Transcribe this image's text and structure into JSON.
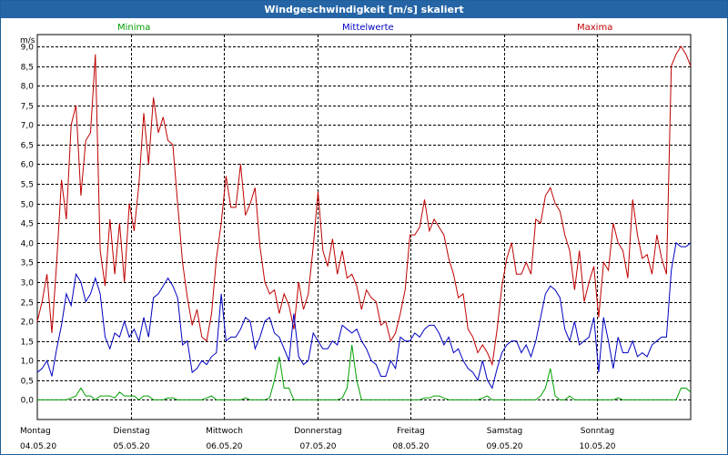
{
  "window": {
    "title": "Windgeschwindigkeit [m/s] skaliert"
  },
  "legend": {
    "min_label": "Minima",
    "mean_label": "Mittelwerte",
    "max_label": "Maxima"
  },
  "colors": {
    "title_bar": "#2565a5",
    "min": "#00a000",
    "mean": "#0000c0",
    "max": "#c00000"
  },
  "chart_data": {
    "type": "line",
    "ylabel": "m/s",
    "ylim": [
      -0.5,
      9.3
    ],
    "yticks": [
      "0,0",
      "0,5",
      "1,0",
      "1,5",
      "2,0",
      "2,5",
      "3,0",
      "3,5",
      "4,0",
      "4,5",
      "5,0",
      "5,5",
      "6,0",
      "6,5",
      "7,0",
      "7,5",
      "8,0",
      "8,5",
      "9,0"
    ],
    "xlim": [
      0,
      7
    ],
    "xticks": [
      {
        "day": "Montag",
        "date": "04.05.20"
      },
      {
        "day": "Dienstag",
        "date": "05.05.20"
      },
      {
        "day": "Mittwoch",
        "date": "06.05.20"
      },
      {
        "day": "Donnerstag",
        "date": "07.05.20"
      },
      {
        "day": "Freitag",
        "date": "08.05.20"
      },
      {
        "day": "Samstag",
        "date": "09.05.20"
      },
      {
        "day": "Sonntag",
        "date": "10.05.20"
      }
    ],
    "grid": true,
    "series": [
      {
        "name": "Maxima",
        "color": "#c00000",
        "values": [
          2.0,
          2.5,
          3.2,
          1.7,
          3.5,
          5.6,
          4.6,
          7.0,
          7.5,
          5.2,
          6.6,
          6.8,
          8.8,
          3.8,
          2.9,
          4.6,
          3.2,
          4.5,
          3.0,
          5.0,
          4.3,
          5.5,
          7.3,
          6.0,
          7.7,
          6.8,
          7.2,
          6.6,
          6.5,
          5.0,
          3.5,
          2.6,
          1.9,
          2.3,
          1.6,
          1.5,
          2.2,
          3.6,
          4.5,
          5.7,
          4.9,
          4.9,
          6.0,
          4.7,
          5.0,
          5.4,
          3.9,
          3.0,
          2.7,
          2.8,
          2.2,
          2.7,
          2.4,
          1.8,
          3.0,
          2.3,
          2.7,
          3.9,
          5.3,
          3.8,
          3.4,
          4.1,
          3.2,
          3.8,
          3.1,
          3.2,
          2.9,
          2.3,
          2.8,
          2.6,
          2.5,
          1.9,
          2.0,
          1.5,
          1.7,
          2.2,
          2.8,
          4.2,
          4.2,
          4.4,
          5.1,
          4.3,
          4.6,
          4.4,
          4.2,
          3.6,
          3.2,
          2.6,
          2.7,
          1.8,
          1.6,
          1.2,
          1.4,
          1.2,
          0.9,
          1.8,
          2.9,
          3.6,
          4.0,
          3.2,
          3.2,
          3.5,
          3.2,
          4.6,
          4.5,
          5.2,
          5.4,
          5.0,
          4.8,
          4.2,
          3.8,
          2.8,
          3.8,
          2.5,
          3.0,
          3.4,
          2.1,
          3.5,
          3.3,
          4.5,
          4.0,
          3.8,
          3.1,
          5.1,
          4.2,
          3.6,
          3.7,
          3.2,
          4.2,
          3.6,
          3.2,
          8.5,
          8.8,
          9.0,
          8.8,
          8.5
        ]
      },
      {
        "name": "Mittelwerte",
        "color": "#0000c0",
        "values": [
          0.7,
          0.8,
          1.0,
          0.6,
          1.3,
          1.9,
          2.7,
          2.4,
          3.2,
          3.0,
          2.5,
          2.7,
          3.1,
          2.7,
          1.6,
          1.3,
          1.7,
          1.6,
          2.0,
          1.6,
          1.8,
          1.5,
          2.1,
          1.6,
          2.6,
          2.7,
          2.9,
          3.1,
          2.9,
          2.6,
          1.4,
          1.5,
          0.7,
          0.8,
          1.0,
          0.9,
          1.1,
          1.2,
          2.7,
          1.5,
          1.6,
          1.6,
          1.8,
          2.1,
          2.0,
          1.3,
          1.6,
          2.0,
          2.1,
          1.7,
          1.6,
          1.3,
          1.0,
          2.2,
          1.1,
          0.9,
          1.0,
          1.7,
          1.5,
          1.3,
          1.3,
          1.5,
          1.4,
          1.9,
          1.8,
          1.7,
          1.8,
          1.5,
          1.3,
          1.0,
          0.9,
          0.6,
          0.6,
          1.0,
          0.8,
          1.6,
          1.5,
          1.5,
          1.7,
          1.6,
          1.8,
          1.9,
          1.9,
          1.7,
          1.4,
          1.6,
          1.2,
          1.3,
          1.0,
          0.8,
          0.7,
          0.5,
          1.0,
          0.5,
          0.3,
          0.8,
          1.2,
          1.4,
          1.5,
          1.5,
          1.2,
          1.4,
          1.1,
          1.5,
          2.1,
          2.7,
          2.9,
          2.8,
          2.6,
          1.8,
          1.5,
          2.0,
          1.4,
          1.5,
          1.6,
          2.1,
          0.7,
          2.1,
          1.5,
          0.8,
          1.6,
          1.2,
          1.2,
          1.5,
          1.1,
          1.2,
          1.1,
          1.4,
          1.5,
          1.6,
          1.6,
          3.3,
          4.0,
          3.9,
          3.9,
          4.0
        ]
      },
      {
        "name": "Minima",
        "color": "#00a000",
        "values": [
          0.0,
          0.0,
          0.0,
          0.0,
          0.0,
          0.0,
          0.0,
          0.05,
          0.1,
          0.3,
          0.1,
          0.1,
          0.0,
          0.1,
          0.1,
          0.1,
          0.05,
          0.2,
          0.1,
          0.1,
          0.1,
          0.0,
          0.1,
          0.1,
          0.0,
          0.0,
          0.0,
          0.05,
          0.05,
          0.0,
          0.0,
          0.0,
          0.0,
          0.0,
          0.0,
          0.05,
          0.1,
          0.0,
          0.0,
          0.0,
          0.0,
          0.0,
          0.0,
          0.05,
          0.0,
          0.0,
          0.0,
          0.0,
          0.05,
          0.5,
          1.1,
          0.3,
          0.3,
          0.0,
          0.0,
          0.0,
          0.0,
          0.0,
          0.0,
          0.0,
          0.0,
          0.0,
          0.0,
          0.05,
          0.3,
          1.4,
          0.5,
          0.0,
          0.0,
          0.0,
          0.0,
          0.0,
          0.0,
          0.0,
          0.0,
          0.0,
          0.0,
          0.0,
          0.0,
          0.0,
          0.05,
          0.05,
          0.1,
          0.1,
          0.05,
          0.0,
          0.0,
          0.0,
          0.0,
          0.0,
          0.0,
          0.0,
          0.05,
          0.1,
          0.0,
          0.0,
          0.0,
          0.0,
          0.0,
          0.0,
          0.0,
          0.0,
          0.0,
          0.0,
          0.1,
          0.3,
          0.8,
          0.1,
          0.0,
          0.0,
          0.1,
          0.0,
          0.0,
          0.0,
          0.0,
          0.0,
          0.0,
          0.0,
          0.0,
          0.0,
          0.05,
          0.0,
          0.0,
          0.0,
          0.0,
          0.0,
          0.0,
          0.0,
          0.0,
          0.0,
          0.0,
          0.0,
          0.0,
          0.3,
          0.3,
          0.2
        ]
      }
    ]
  }
}
